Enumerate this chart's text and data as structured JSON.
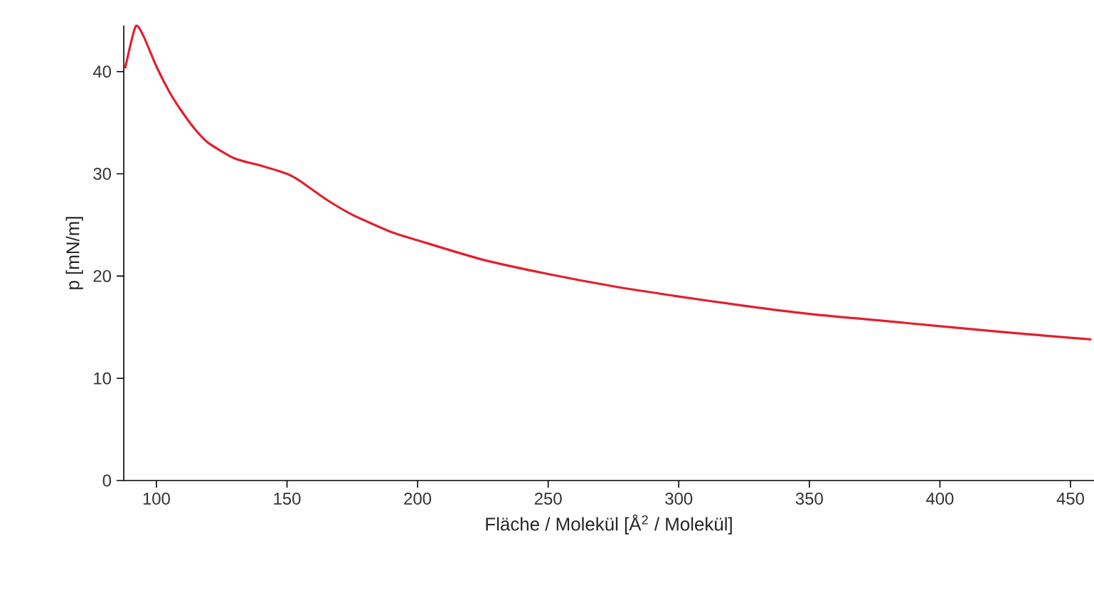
{
  "chart_data": {
    "type": "line",
    "xlabel": "Fläche / Molekül  [Å$^{2}$ / Molekül]",
    "ylabel": "p [mN/m]",
    "xlim": [
      87.5,
      459
    ],
    "ylim": [
      0,
      44.5
    ],
    "xticks": [
      100,
      150,
      200,
      250,
      300,
      350,
      400,
      450
    ],
    "yticks": [
      0,
      10,
      20,
      30,
      40
    ],
    "grid": false,
    "series": [
      {
        "color": "#e0202e",
        "x": [
          88,
          92,
          95,
          100,
          105,
          110,
          115,
          120,
          130,
          140,
          150,
          155,
          165,
          175,
          190,
          200,
          225,
          250,
          275,
          300,
          325,
          350,
          375,
          400,
          425,
          458
        ],
        "values": [
          40.3,
          44.4,
          43.5,
          40.5,
          38,
          36,
          34.3,
          33,
          31.5,
          30.8,
          30,
          29.3,
          27.5,
          26,
          24.3,
          23.5,
          21.6,
          20.2,
          19,
          18,
          17.1,
          16.3,
          15.7,
          15.1,
          14.5,
          13.8
        ]
      }
    ]
  }
}
